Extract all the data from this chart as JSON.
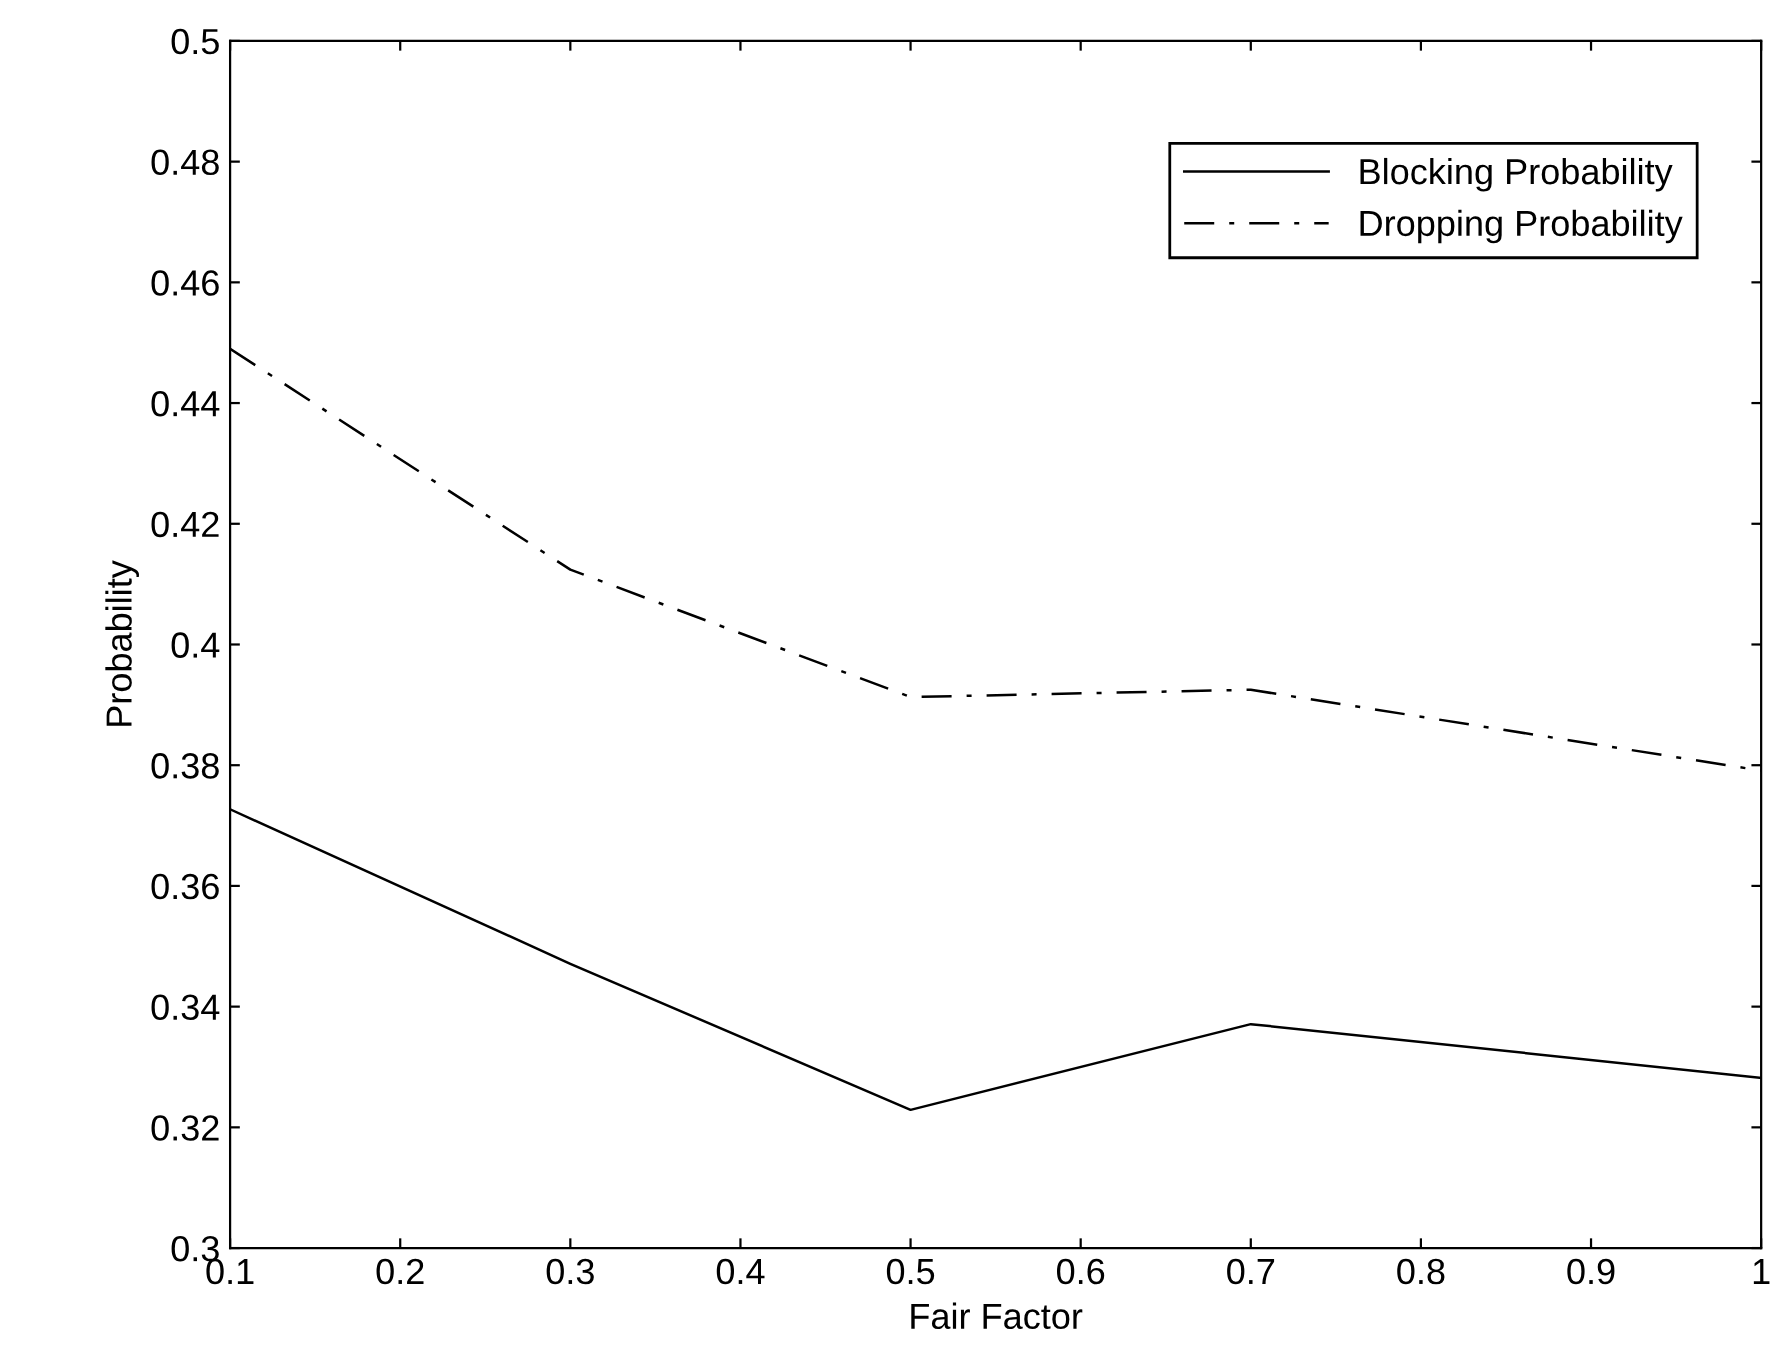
{
  "chart_data": {
    "type": "line",
    "xlabel": "Fair Factor",
    "ylabel": "Probability",
    "x": [
      0.1,
      0.3,
      0.5,
      0.7,
      1
    ],
    "series": [
      {
        "name": "Blocking Probability",
        "color": "#000000",
        "line_style": "solid",
        "values": [
          0.3727,
          0.3471,
          0.3229,
          0.3371,
          0.3282
        ]
      },
      {
        "name": "Dropping Probability",
        "color": "#000000",
        "line_style": "dashdot",
        "values": [
          0.449,
          0.4124,
          0.3913,
          0.3925,
          0.3791
        ]
      }
    ],
    "xlim": [
      0.1,
      1
    ],
    "xticks": [
      0.1,
      0.2,
      0.3,
      0.4,
      0.5,
      0.6,
      0.7,
      0.8,
      0.9,
      1
    ],
    "ylim": [
      0.3,
      0.5
    ],
    "yticks": [
      0.3,
      0.32,
      0.34,
      0.36,
      0.38,
      0.4,
      0.42,
      0.44,
      0.46,
      0.48,
      0.5
    ],
    "grid": false,
    "legend": "top right",
    "marker": "none"
  }
}
